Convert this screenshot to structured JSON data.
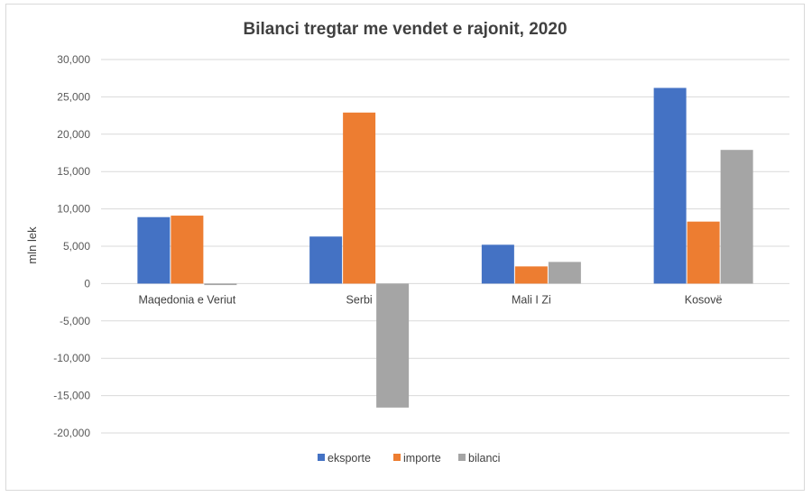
{
  "chart_data": {
    "type": "bar",
    "title": "Bilanci tregtar me vendet e rajonit, 2020",
    "ylabel": "mln lek",
    "xlabel": "",
    "categories": [
      "Maqedonia e Veriut",
      "Serbi",
      "Mali I Zi",
      "Kosovë"
    ],
    "series": [
      {
        "name": "eksporte",
        "color": "#4472c4",
        "values": [
          8900,
          6300,
          5200,
          26200
        ]
      },
      {
        "name": "importe",
        "color": "#ed7d31",
        "values": [
          9100,
          22900,
          2300,
          8300
        ]
      },
      {
        "name": "bilanci",
        "color": "#a5a5a5",
        "values": [
          -200,
          -16600,
          2900,
          17900
        ]
      }
    ],
    "ylim": [
      -20000,
      30000
    ],
    "yticks": [
      30000,
      25000,
      20000,
      15000,
      10000,
      5000,
      0,
      -5000,
      -10000,
      -15000,
      -20000
    ],
    "ytick_labels": [
      "30,000",
      "25,000",
      "20,000",
      "15,000",
      "10,000",
      "5,000",
      "0",
      "-5,000",
      "-10,000",
      "-15,000",
      "-20,000"
    ],
    "grid": true,
    "legend_position": "bottom"
  }
}
